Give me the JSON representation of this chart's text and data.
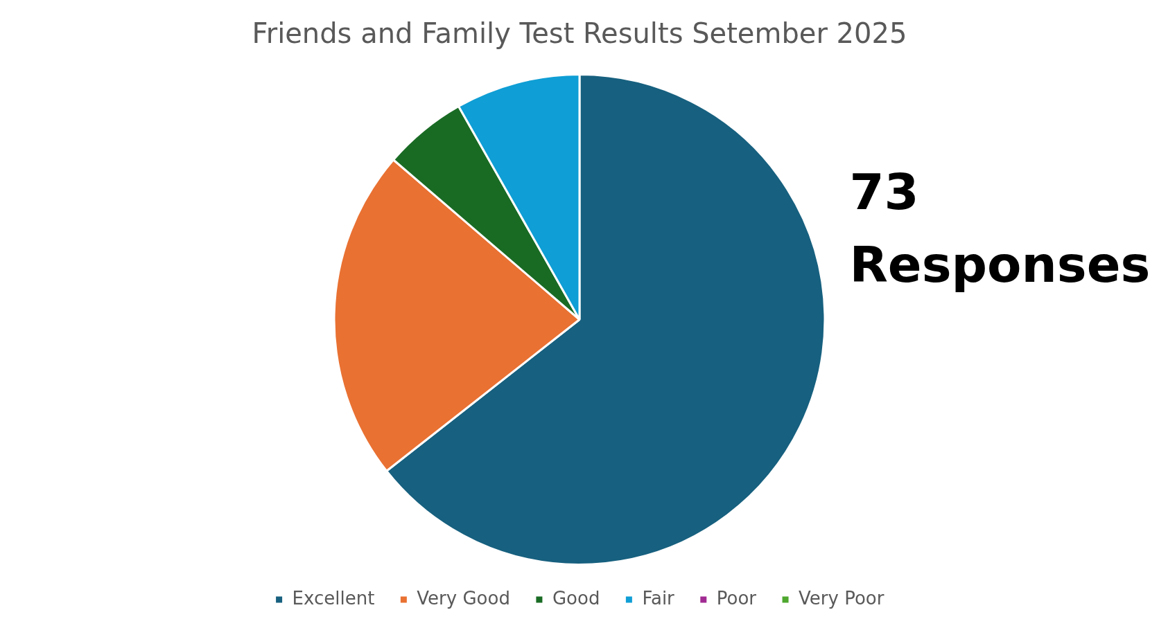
{
  "chart_data": {
    "type": "pie",
    "title": "Friends and Family Test Results Setember 2025",
    "categories": [
      "Excellent",
      "Very Good",
      "Good",
      "Fair",
      "Poor",
      "Very Poor"
    ],
    "values": [
      64.4,
      21.9,
      5.5,
      8.2,
      0,
      0
    ],
    "colors": [
      "#17607f",
      "#e97132",
      "#196b24",
      "#0f9ed5",
      "#a02b93",
      "#4ea72e"
    ],
    "legend": "bottom",
    "annotations": [
      "73 Responses"
    ]
  }
}
